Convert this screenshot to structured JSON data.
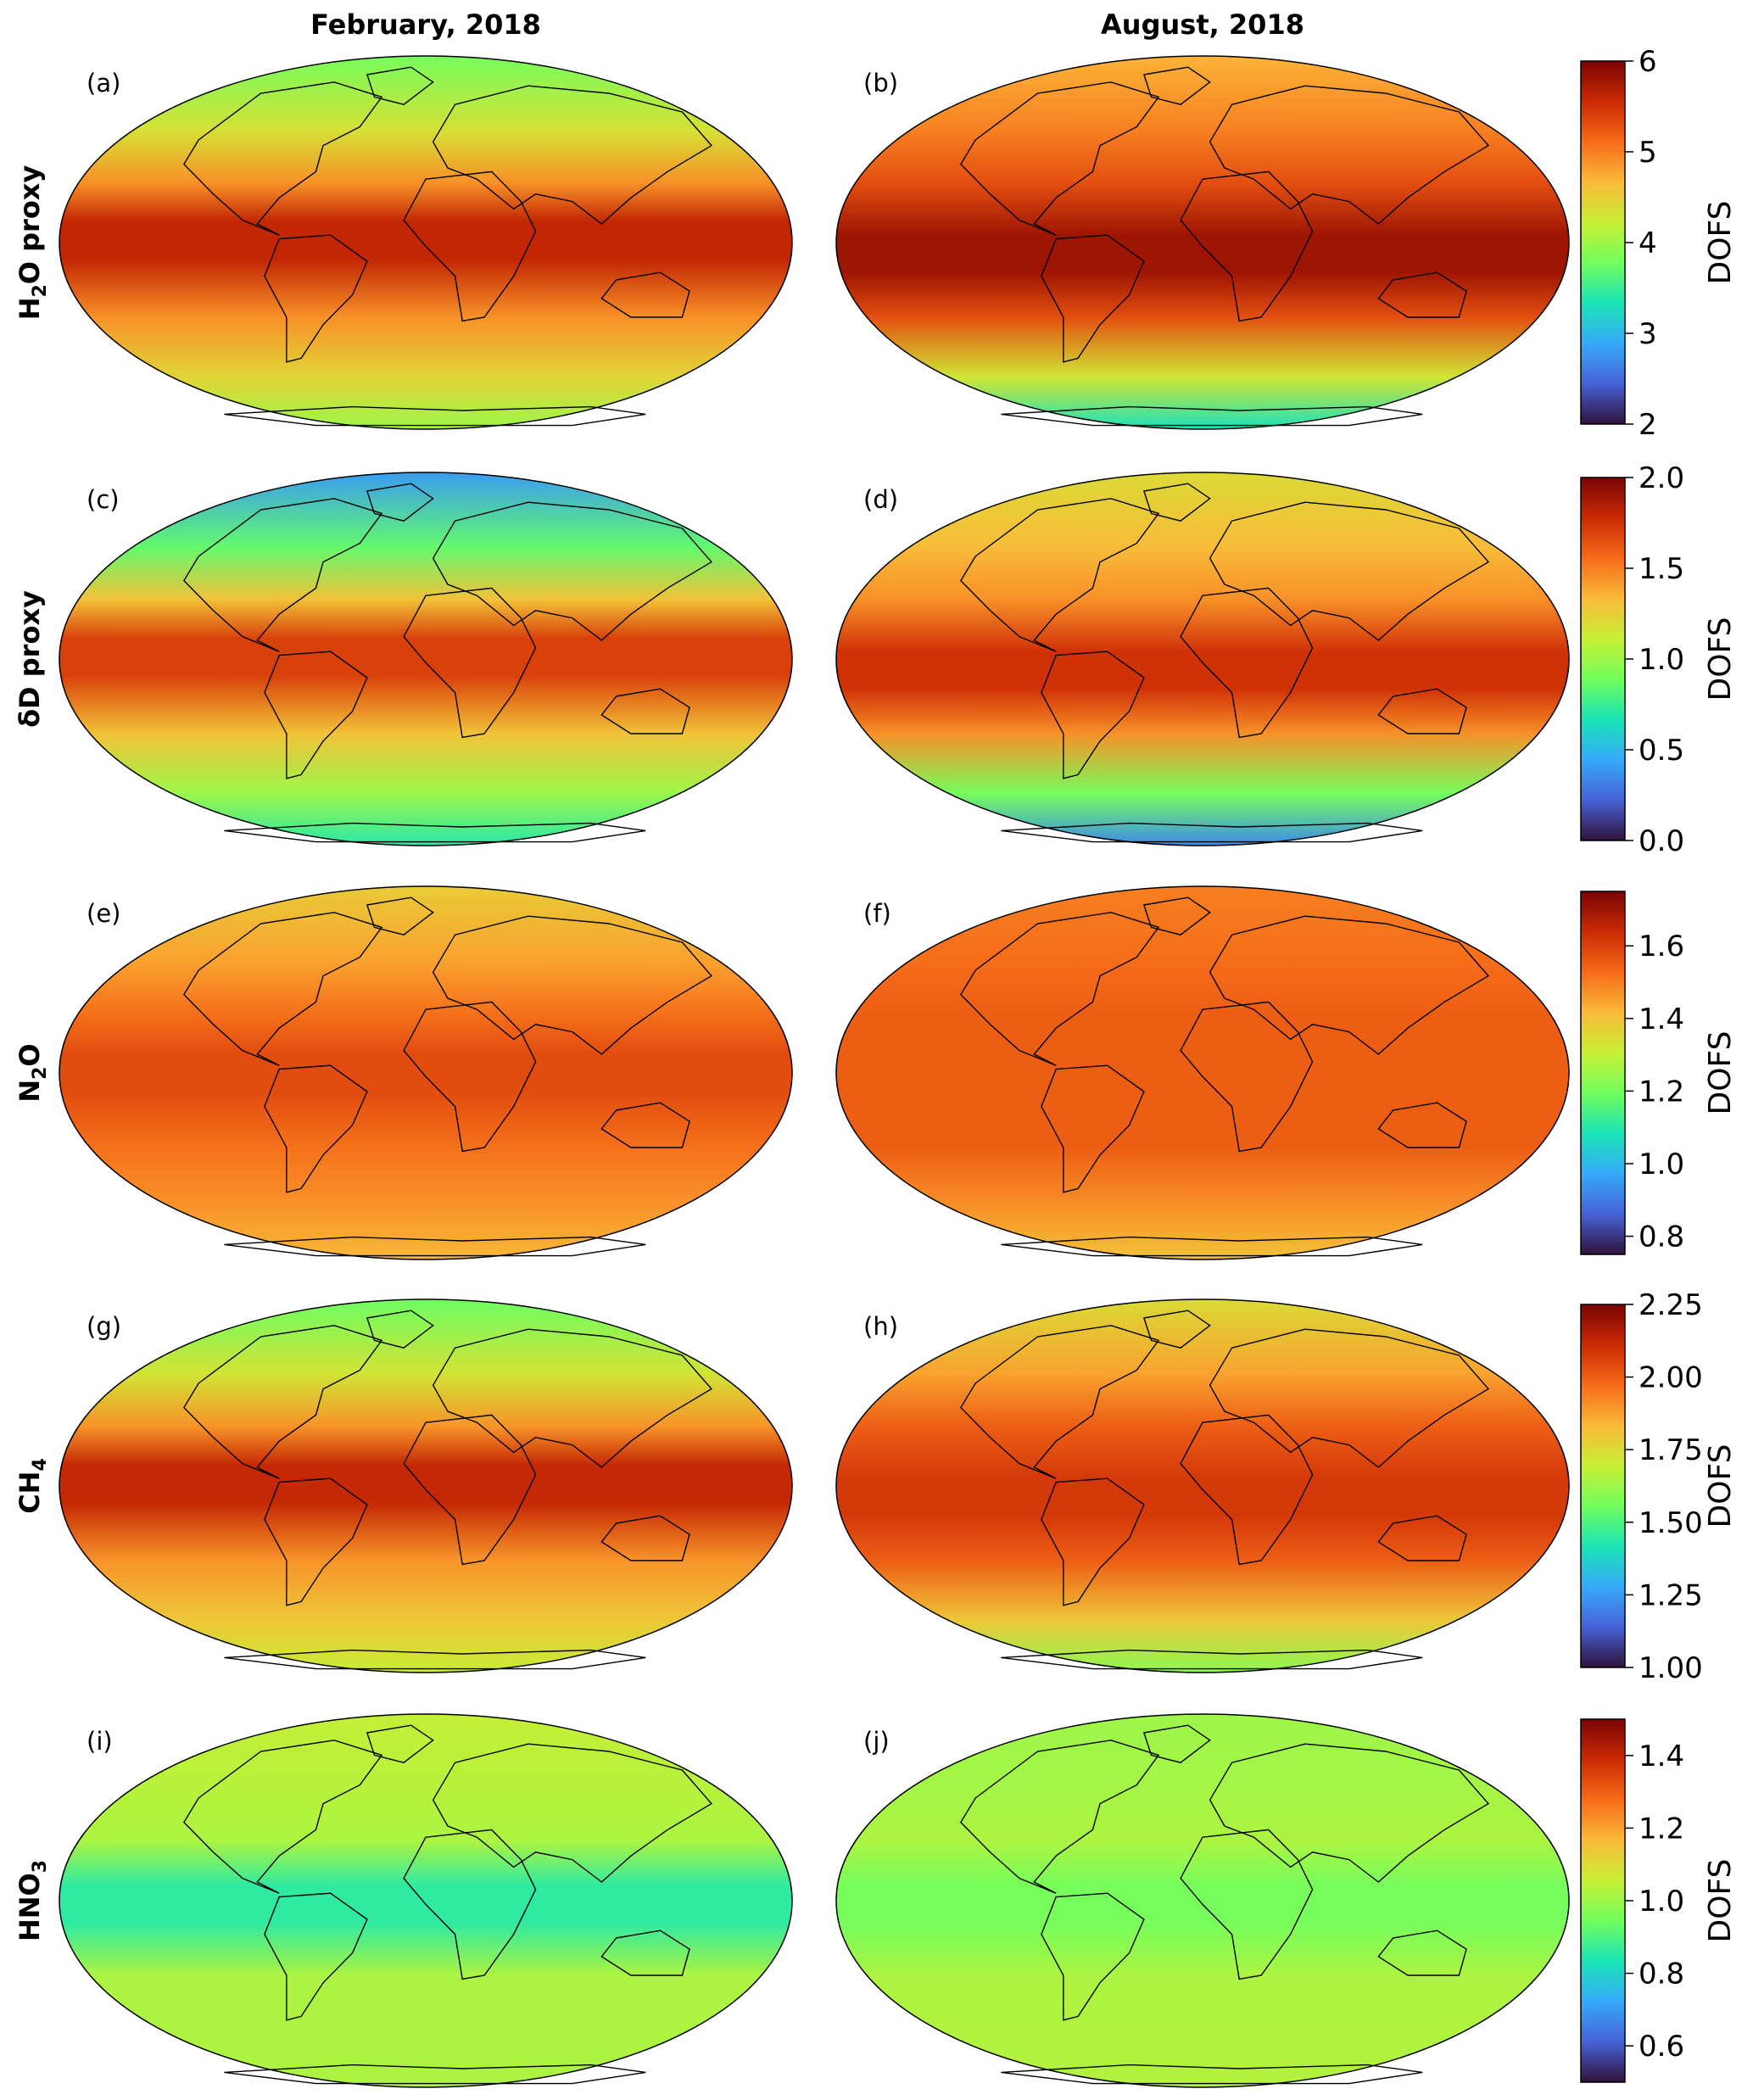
{
  "figure": {
    "column_titles": [
      "February, 2018",
      "August, 2018"
    ],
    "colorbar_label": "DOFS"
  },
  "colors": {
    "turbo_stops": [
      "#30123b",
      "#4662d7",
      "#36aaf9",
      "#1ae4b6",
      "#72fe5e",
      "#c7ef34",
      "#faba39",
      "#f66b19",
      "#ca2a04",
      "#7a0403"
    ],
    "coastline": "#000000",
    "map_outline": "#000000"
  },
  "chart_data": {
    "type": "heatmap",
    "projection": "Mollweide",
    "rows": [
      {
        "species": "H2O proxy",
        "label_base": "H",
        "label_sub": "2",
        "label_rest": "O proxy",
        "colorbar": {
          "min": 2,
          "max": 6,
          "ticks": [
            "2",
            "3",
            "4",
            "5",
            "6"
          ]
        },
        "panels": [
          {
            "label": "(a)",
            "month": "February, 2018",
            "tropical_value": 5.6,
            "midlat_value": 4.9,
            "polar_value": 3.8,
            "south_polar_value": 4.0,
            "itcz_shift": -0.15
          },
          {
            "label": "(b)",
            "month": "August, 2018",
            "tropical_value": 5.8,
            "midlat_value": 5.3,
            "polar_value": 4.7,
            "south_polar_value": 3.3,
            "itcz_shift": 0.2
          }
        ]
      },
      {
        "species": "δD proxy",
        "label_base": "δD proxy",
        "label_sub": "",
        "label_rest": "",
        "colorbar": {
          "min": 0.0,
          "max": 2.0,
          "ticks": [
            "0.0",
            "0.5",
            "1.0",
            "1.5",
            "2.0"
          ]
        },
        "panels": [
          {
            "label": "(c)",
            "month": "February, 2018",
            "tropical_value": 1.7,
            "midlat_value": 1.3,
            "polar_value": 0.4,
            "south_polar_value": 0.7,
            "itcz_shift": -0.15
          },
          {
            "label": "(d)",
            "month": "August, 2018",
            "tropical_value": 1.75,
            "midlat_value": 1.45,
            "polar_value": 1.2,
            "south_polar_value": 0.35,
            "itcz_shift": 0.2
          }
        ]
      },
      {
        "species": "N2O",
        "label_base": "N",
        "label_sub": "2",
        "label_rest": "O",
        "colorbar": {
          "min": 0.75,
          "max": 1.75,
          "ticks": [
            "0.8",
            "1.0",
            "1.2",
            "1.4",
            "1.6"
          ]
        },
        "panels": [
          {
            "label": "(e)",
            "month": "February, 2018",
            "tropical_value": 1.58,
            "midlat_value": 1.52,
            "polar_value": 1.38,
            "south_polar_value": 1.42,
            "itcz_shift": -0.1
          },
          {
            "label": "(f)",
            "month": "August, 2018",
            "tropical_value": 1.55,
            "midlat_value": 1.55,
            "polar_value": 1.5,
            "south_polar_value": 1.4,
            "itcz_shift": 0.1
          }
        ]
      },
      {
        "species": "CH4",
        "label_base": "CH",
        "label_sub": "4",
        "label_rest": "",
        "colorbar": {
          "min": 1.0,
          "max": 2.25,
          "ticks": [
            "1.00",
            "1.25",
            "1.50",
            "1.75",
            "2.00",
            "2.25"
          ]
        },
        "panels": [
          {
            "label": "(g)",
            "month": "February, 2018",
            "tropical_value": 2.12,
            "midlat_value": 1.9,
            "polar_value": 1.55,
            "south_polar_value": 1.7,
            "itcz_shift": -0.15
          },
          {
            "label": "(h)",
            "month": "August, 2018",
            "tropical_value": 2.08,
            "midlat_value": 2.0,
            "polar_value": 1.75,
            "south_polar_value": 1.6,
            "itcz_shift": 0.2
          }
        ]
      },
      {
        "species": "HNO3",
        "label_base": "HNO",
        "label_sub": "3",
        "label_rest": "",
        "colorbar": {
          "min": 0.5,
          "max": 1.5,
          "ticks": [
            "0.6",
            "0.8",
            "1.0",
            "1.2",
            "1.4"
          ]
        },
        "panels": [
          {
            "label": "(i)",
            "month": "February, 2018",
            "tropical_value": 0.86,
            "midlat_value": 1.02,
            "polar_value": 1.05,
            "south_polar_value": 1.02,
            "itcz_shift": 0.0
          },
          {
            "label": "(j)",
            "month": "August, 2018",
            "tropical_value": 0.95,
            "midlat_value": 1.02,
            "polar_value": 1.0,
            "south_polar_value": 1.03,
            "itcz_shift": 0.0
          }
        ]
      }
    ]
  }
}
